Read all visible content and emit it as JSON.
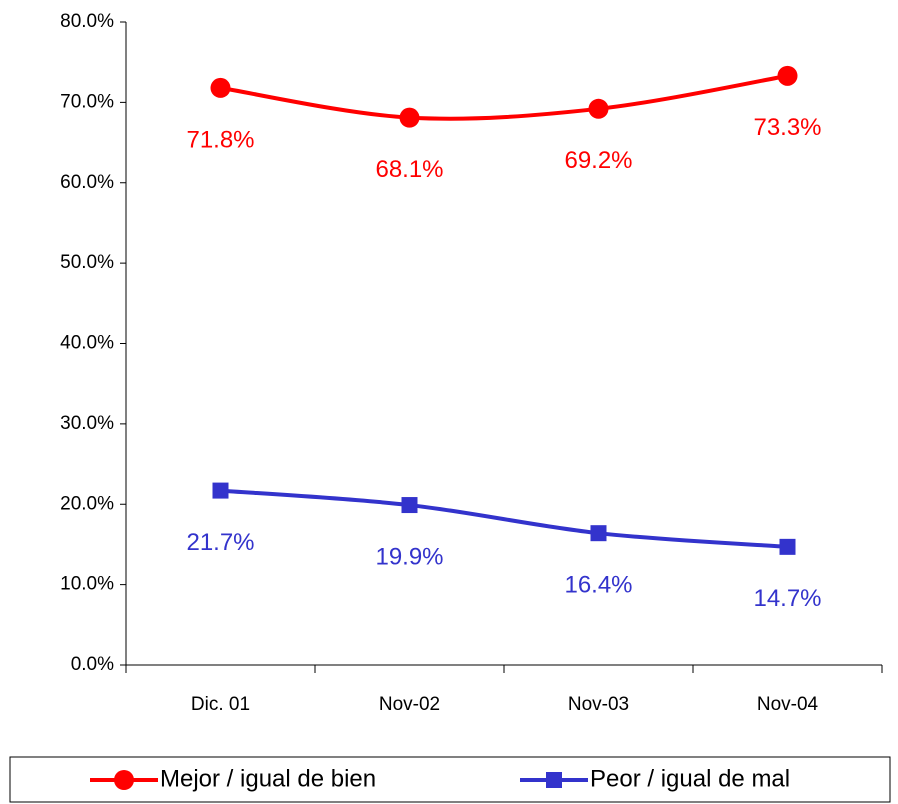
{
  "chart_data": {
    "type": "line",
    "categories": [
      "Dic. 01",
      "Nov-02",
      "Nov-03",
      "Nov-04"
    ],
    "series": [
      {
        "name": "Mejor / igual de bien",
        "color": "#ff0000",
        "marker": "circle",
        "values": [
          71.8,
          68.1,
          69.2,
          73.3
        ],
        "value_labels": [
          "71.8%",
          "68.1%",
          "69.2%",
          "73.3%"
        ]
      },
      {
        "name": "Peor / igual de mal",
        "color": "#3333cc",
        "marker": "square",
        "values": [
          21.7,
          19.9,
          16.4,
          14.7
        ],
        "value_labels": [
          "21.7%",
          "19.9%",
          "16.4%",
          "14.7%"
        ]
      }
    ],
    "ylim": [
      0,
      80
    ],
    "yticks": [
      {
        "value": 0,
        "label": "0.0%"
      },
      {
        "value": 10,
        "label": "10.0%"
      },
      {
        "value": 20,
        "label": "20.0%"
      },
      {
        "value": 30,
        "label": "30.0%"
      },
      {
        "value": 40,
        "label": "40.0%"
      },
      {
        "value": 50,
        "label": "50.0%"
      },
      {
        "value": 60,
        "label": "60.0%"
      },
      {
        "value": 70,
        "label": "70.0%"
      },
      {
        "value": 80,
        "label": "80.0%"
      }
    ],
    "grid": false,
    "smooth": true,
    "legend": "bottom"
  }
}
